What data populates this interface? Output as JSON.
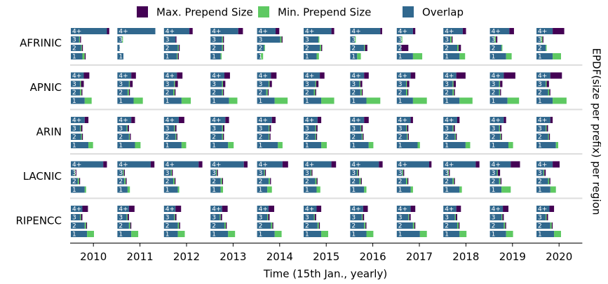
{
  "chart_data": {
    "type": "stacked-barh-grid",
    "x_label": "Time (15th Jan., yearly)",
    "y_label": "EPDF(size per prefix) per region",
    "rows": [
      "AFRINIC",
      "APNIC",
      "ARIN",
      "LACNIC",
      "RIPENCC"
    ],
    "columns": [
      "2010",
      "2011",
      "2012",
      "2013",
      "2014",
      "2015",
      "2016",
      "2017",
      "2018",
      "2019",
      "2020"
    ],
    "bar_labels": [
      "1",
      "2",
      "3",
      "4+"
    ],
    "series": [
      {
        "name": "Max. Prepend Size",
        "color": "#440154",
        "values": [
          [
            [
              0.02,
              0.02,
              0.02,
              0.05
            ],
            [
              0,
              0,
              0,
              0
            ],
            [
              0.02,
              0.02,
              0.02,
              0.07
            ],
            [
              0,
              0.02,
              0.02,
              0.1
            ],
            [
              0,
              0,
              0.02,
              0.08
            ],
            [
              0,
              0.02,
              0,
              0.06
            ],
            [
              0,
              0.05,
              0,
              0.04
            ],
            [
              0,
              0.15,
              0,
              0.05
            ],
            [
              0,
              0.05,
              0.02,
              0.07
            ],
            [
              0,
              0,
              0.03,
              0.1
            ],
            [
              0,
              0,
              0.02,
              0.25
            ]
          ],
          [
            [
              0,
              0.02,
              0.06,
              0.12
            ],
            [
              0,
              0.02,
              0.06,
              0.1
            ],
            [
              0,
              0.02,
              0.06,
              0.12
            ],
            [
              0,
              0.02,
              0.05,
              0.12
            ],
            [
              0,
              0.02,
              0.05,
              0.12
            ],
            [
              0,
              0.02,
              0.05,
              0.1
            ],
            [
              0,
              0.02,
              0.04,
              0.1
            ],
            [
              0,
              0.02,
              0.05,
              0.1
            ],
            [
              0,
              0.02,
              0.05,
              0.2
            ],
            [
              0,
              0.02,
              0.05,
              0.25
            ],
            [
              0,
              0.02,
              0.05,
              0.25
            ]
          ],
          [
            [
              0,
              0.02,
              0.03,
              0.08
            ],
            [
              0,
              0.02,
              0.03,
              0.08
            ],
            [
              0,
              0.02,
              0.03,
              0.12
            ],
            [
              0,
              0.02,
              0.03,
              0.08
            ],
            [
              0,
              0.02,
              0.03,
              0.08
            ],
            [
              0,
              0.02,
              0.03,
              0.08
            ],
            [
              0,
              0.02,
              0.03,
              0.1
            ],
            [
              0,
              0.02,
              0.03,
              0.05
            ],
            [
              0,
              0.02,
              0.03,
              0.05
            ],
            [
              0,
              0.02,
              0.03,
              0.05
            ],
            [
              0,
              0.02,
              0.03,
              0.05
            ]
          ],
          [
            [
              0,
              0.02,
              0.02,
              0.08
            ],
            [
              0,
              0.02,
              0.02,
              0.08
            ],
            [
              0,
              0.02,
              0.02,
              0.08
            ],
            [
              0,
              0.02,
              0.02,
              0.08
            ],
            [
              0,
              0.02,
              0.02,
              0.12
            ],
            [
              0,
              0.02,
              0.02,
              0.1
            ],
            [
              0,
              0.02,
              0.02,
              0.08
            ],
            [
              0,
              0.02,
              0.02,
              0.05
            ],
            [
              0,
              0.02,
              0.02,
              0.08
            ],
            [
              0,
              0.02,
              0.05,
              0.2
            ],
            [
              0,
              0.02,
              0.03,
              0.15
            ]
          ],
          [
            [
              0,
              0.02,
              0.03,
              0.12
            ],
            [
              0,
              0.02,
              0.03,
              0.12
            ],
            [
              0,
              0.02,
              0.03,
              0.12
            ],
            [
              0,
              0.02,
              0.03,
              0.12
            ],
            [
              0,
              0.02,
              0.03,
              0.12
            ],
            [
              0,
              0.02,
              0.03,
              0.1
            ],
            [
              0,
              0.02,
              0.03,
              0.1
            ],
            [
              0,
              0.02,
              0.03,
              0.1
            ],
            [
              0,
              0.02,
              0.03,
              0.1
            ],
            [
              0,
              0.02,
              0.03,
              0.12
            ],
            [
              0,
              0.02,
              0.03,
              0.1
            ]
          ]
        ]
      },
      {
        "name": "Min. Prepend Size",
        "color": "#5ec962",
        "values": [
          [
            [
              0.05,
              0.02,
              0.02,
              0
            ],
            [
              0,
              0,
              0.02,
              0
            ],
            [
              0.02,
              0.02,
              0,
              0
            ],
            [
              0.02,
              0.02,
              0.02,
              0
            ],
            [
              0.05,
              0.02,
              0.03,
              0
            ],
            [
              0.05,
              0.03,
              0.02,
              0
            ],
            [
              0.08,
              0.02,
              0.02,
              0
            ],
            [
              0.2,
              0,
              0.02,
              0
            ],
            [
              0.12,
              0.03,
              0.03,
              0
            ],
            [
              0.12,
              0.02,
              0.03,
              0
            ],
            [
              0.18,
              0.02,
              0.03,
              0
            ]
          ],
          [
            [
              0.15,
              0.03,
              0.02,
              0
            ],
            [
              0.2,
              0.03,
              0.02,
              0
            ],
            [
              0.2,
              0.03,
              0.02,
              0
            ],
            [
              0.18,
              0.02,
              0.02,
              0
            ],
            [
              0.28,
              0.03,
              0.02,
              0
            ],
            [
              0.28,
              0.03,
              0.02,
              0
            ],
            [
              0.3,
              0.03,
              0.02,
              0
            ],
            [
              0.3,
              0.03,
              0.02,
              0
            ],
            [
              0.28,
              0.03,
              0.02,
              0
            ],
            [
              0.25,
              0.02,
              0.02,
              0
            ],
            [
              0.3,
              0.03,
              0.02,
              0
            ]
          ],
          [
            [
              0.1,
              0.02,
              0.02,
              0
            ],
            [
              0.12,
              0.02,
              0.02,
              0
            ],
            [
              0.1,
              0.02,
              0.02,
              0
            ],
            [
              0.12,
              0.02,
              0.02,
              0
            ],
            [
              0.1,
              0.02,
              0.02,
              0
            ],
            [
              0.12,
              0.02,
              0.02,
              0
            ],
            [
              0.1,
              0.02,
              0.02,
              0
            ],
            [
              0.05,
              0.02,
              0.02,
              0
            ],
            [
              0.1,
              0.02,
              0.02,
              0
            ],
            [
              0.1,
              0.02,
              0.02,
              0
            ],
            [
              0.05,
              0.02,
              0.02,
              0
            ]
          ],
          [
            [
              0.03,
              0.03,
              0.02,
              0
            ],
            [
              0.05,
              0.03,
              0.02,
              0
            ],
            [
              0.03,
              0.03,
              0.02,
              0
            ],
            [
              0.05,
              0.03,
              0.02,
              0
            ],
            [
              0.1,
              0.03,
              0.02,
              0
            ],
            [
              0.08,
              0.03,
              0.02,
              0
            ],
            [
              0.05,
              0.03,
              0.02,
              0
            ],
            [
              0.05,
              0.03,
              0.02,
              0
            ],
            [
              0.05,
              0.03,
              0.02,
              0
            ],
            [
              0.2,
              0.03,
              0.02,
              0
            ],
            [
              0.12,
              0.03,
              0.02,
              0
            ]
          ],
          [
            [
              0.15,
              0.03,
              0.02,
              0
            ],
            [
              0.15,
              0.03,
              0.02,
              0
            ],
            [
              0.15,
              0.03,
              0.02,
              0
            ],
            [
              0.15,
              0.03,
              0.02,
              0
            ],
            [
              0.15,
              0.03,
              0.02,
              0
            ],
            [
              0.15,
              0.03,
              0.02,
              0
            ],
            [
              0.15,
              0.03,
              0.02,
              0
            ],
            [
              0.15,
              0.03,
              0.02,
              0
            ],
            [
              0.15,
              0.03,
              0.02,
              0
            ],
            [
              0.15,
              0.03,
              0.02,
              0
            ],
            [
              0.15,
              0.03,
              0.02,
              0
            ]
          ]
        ]
      },
      {
        "name": "Overlap",
        "color": "#31688e",
        "values": [
          [
            [
              0.25,
              0.22,
              0.18,
              0.78
            ],
            [
              0.13,
              0.05,
              0.1,
              0.82
            ],
            [
              0.28,
              0.3,
              0.25,
              0.55
            ],
            [
              0.22,
              0.25,
              0.25,
              0.6
            ],
            [
              0.08,
              0.15,
              0.5,
              0.4
            ],
            [
              0.28,
              0.35,
              0.32,
              0.6
            ],
            [
              0.15,
              0.3,
              0.1,
              0.65
            ],
            [
              0.35,
              0.1,
              0.1,
              0.35
            ],
            [
              0.35,
              0.3,
              0.15,
              0.42
            ],
            [
              0.35,
              0.25,
              0.1,
              0.42
            ],
            [
              0.35,
              0.2,
              0.1,
              0.35
            ]
          ],
          [
            [
              0.3,
              0.2,
              0.2,
              0.28
            ],
            [
              0.35,
              0.22,
              0.25,
              0.3
            ],
            [
              0.38,
              0.2,
              0.22,
              0.28
            ],
            [
              0.4,
              0.25,
              0.25,
              0.3
            ],
            [
              0.38,
              0.2,
              0.25,
              0.3
            ],
            [
              0.38,
              0.22,
              0.25,
              0.35
            ],
            [
              0.35,
              0.22,
              0.2,
              0.3
            ],
            [
              0.35,
              0.2,
              0.2,
              0.3
            ],
            [
              0.35,
              0.2,
              0.2,
              0.28
            ],
            [
              0.38,
              0.2,
              0.2,
              0.3
            ],
            [
              0.35,
              0.25,
              0.2,
              0.3
            ]
          ],
          [
            [
              0.38,
              0.22,
              0.2,
              0.3
            ],
            [
              0.38,
              0.25,
              0.2,
              0.3
            ],
            [
              0.38,
              0.25,
              0.22,
              0.32
            ],
            [
              0.38,
              0.25,
              0.25,
              0.32
            ],
            [
              0.45,
              0.25,
              0.25,
              0.32
            ],
            [
              0.38,
              0.25,
              0.25,
              0.3
            ],
            [
              0.4,
              0.25,
              0.22,
              0.3
            ],
            [
              0.45,
              0.22,
              0.2,
              0.3
            ],
            [
              0.48,
              0.25,
              0.2,
              0.3
            ],
            [
              0.4,
              0.22,
              0.2,
              0.3
            ],
            [
              0.42,
              0.25,
              0.2,
              0.3
            ]
          ],
          [
            [
              0.3,
              0.15,
              0.08,
              0.7
            ],
            [
              0.22,
              0.15,
              0.12,
              0.72
            ],
            [
              0.3,
              0.2,
              0.15,
              0.75
            ],
            [
              0.22,
              0.22,
              0.12,
              0.72
            ],
            [
              0.22,
              0.25,
              0.15,
              0.55
            ],
            [
              0.28,
              0.25,
              0.15,
              0.6
            ],
            [
              0.3,
              0.2,
              0.15,
              0.62
            ],
            [
              0.3,
              0.2,
              0.12,
              0.7
            ],
            [
              0.35,
              0.2,
              0.1,
              0.7
            ],
            [
              0.25,
              0.2,
              0.15,
              0.45
            ],
            [
              0.3,
              0.25,
              0.15,
              0.35
            ]
          ],
          [
            [
              0.35,
              0.3,
              0.2,
              0.25
            ],
            [
              0.3,
              0.25,
              0.2,
              0.25
            ],
            [
              0.3,
              0.3,
              0.22,
              0.25
            ],
            [
              0.38,
              0.3,
              0.2,
              0.25
            ],
            [
              0.38,
              0.3,
              0.22,
              0.25
            ],
            [
              0.38,
              0.3,
              0.22,
              0.28
            ],
            [
              0.35,
              0.3,
              0.25,
              0.28
            ],
            [
              0.5,
              0.35,
              0.25,
              0.3
            ],
            [
              0.35,
              0.3,
              0.25,
              0.28
            ],
            [
              0.35,
              0.3,
              0.25,
              0.28
            ],
            [
              0.38,
              0.3,
              0.2,
              0.28
            ]
          ]
        ]
      }
    ]
  }
}
